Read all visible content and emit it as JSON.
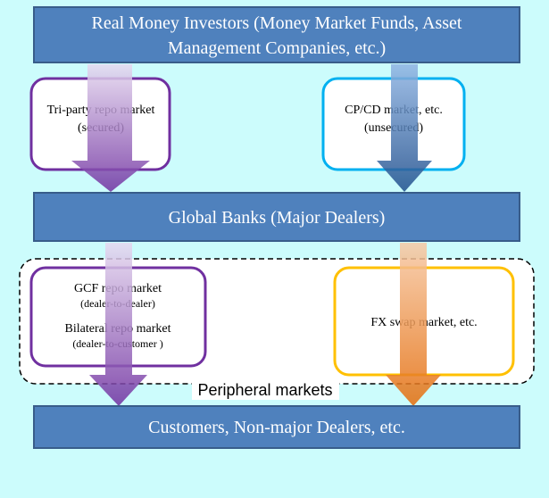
{
  "top_box": {
    "lines": [
      "Real Money Investors (Money Market Funds, Asset",
      "Management Companies, etc.)"
    ]
  },
  "secured_market": {
    "title": "Tri-party repo market",
    "note": "(secured)"
  },
  "unsecured_market": {
    "title": "CP/CD market, etc.",
    "note": "(unsecured)"
  },
  "middle_box": {
    "label": "Global Banks (Major Dealers)"
  },
  "repo_markets": {
    "gcf": "GCF repo market",
    "gcf_note": "(dealer-to-dealer)",
    "bilateral": "Bilateral repo market",
    "bilateral_note": "(dealer-to-customer )"
  },
  "fx_market": {
    "label": "FX swap market, etc."
  },
  "peripheral": {
    "label": "Peripheral markets"
  },
  "bottom_box": {
    "label": "Customers, Non-major Dealers, etc."
  }
}
